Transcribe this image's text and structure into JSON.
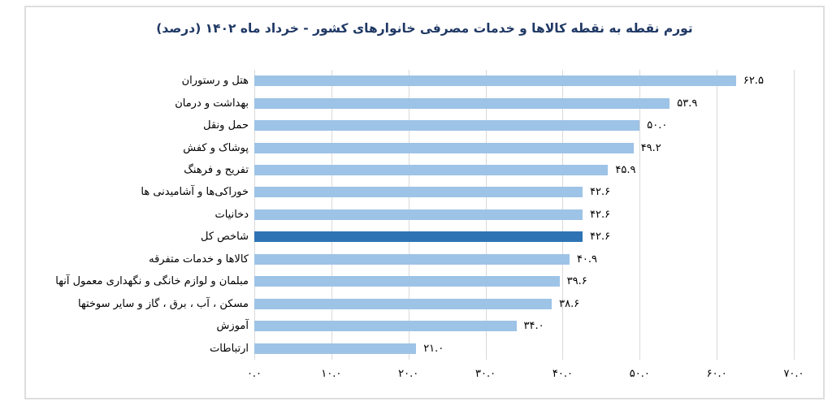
{
  "page": {
    "background": "#ffffff",
    "frame_border_color": "#dedede"
  },
  "chart_data": {
    "type": "bar",
    "orientation": "horizontal",
    "title": "تورم نقطه به نقطه کالاها و خدمات مصرفی خانوارهای کشور - خرداد ماه ۱۴۰۲ (درصد)",
    "title_color": "#1f3864",
    "categories": [
      "هتل و رستوران",
      "بهداشت و درمان",
      "حمل ونقل",
      "پوشاک و کفش",
      "تفریح و فرهنگ",
      "خوراکی‌ها و آشامیدنی ها",
      "دخانیات",
      "شاخص کل",
      "کالاها و خدمات متفرقه",
      "مبلمان و لوازم خانگی و نگهداری معمول آنها",
      "مسکن ، آب ، برق ، گاز و سایر سوختها",
      "آموزش",
      "ارتباطات"
    ],
    "values": [
      62.5,
      53.9,
      50.0,
      49.2,
      45.9,
      42.6,
      42.6,
      42.6,
      40.9,
      39.6,
      38.6,
      34.0,
      21.0
    ],
    "value_labels": [
      "۶۲.۵",
      "۵۳.۹",
      "۵۰.۰",
      "۴۹.۲",
      "۴۵.۹",
      "۴۲.۶",
      "۴۲.۶",
      "۴۲.۶",
      "۴۰.۹",
      "۳۹.۶",
      "۳۸.۶",
      "۳۴.۰",
      "۲۱.۰"
    ],
    "highlight_index": 7,
    "bar_color": "#9dc3e6",
    "highlight_color": "#2e74b5",
    "xlim": [
      0,
      70
    ],
    "xticks": [
      0,
      10,
      20,
      30,
      40,
      50,
      60,
      70
    ],
    "xtick_labels": [
      "۰.۰",
      "۱۰.۰",
      "۲۰.۰",
      "۳۰.۰",
      "۴۰.۰",
      "۵۰.۰",
      "۶۰.۰",
      "۷۰.۰"
    ],
    "grid": "vertical",
    "gridline_color": "#d9d9d9",
    "legend": "none"
  }
}
